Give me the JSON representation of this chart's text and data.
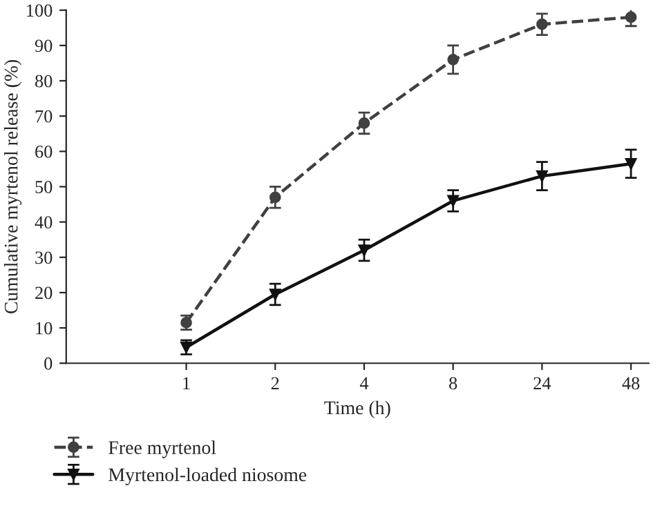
{
  "chart_data": {
    "type": "line",
    "xlabel": "Time (h)",
    "ylabel": "Cumulative myrtenol release (%)",
    "categories": [
      "1",
      "2",
      "4",
      "8",
      "24",
      "48"
    ],
    "series": [
      {
        "name": "Free myrtenol",
        "color": "#404040",
        "line_style": "dashed",
        "marker": "circle",
        "values": [
          11.5,
          47,
          68,
          86,
          96,
          98
        ],
        "errors": [
          2,
          3,
          3,
          4,
          3,
          2.5
        ]
      },
      {
        "name": "Myrtenol-loaded niosome",
        "color": "#111111",
        "line_style": "solid",
        "marker": "triangle",
        "values": [
          4.5,
          19.5,
          32,
          46,
          53,
          56.5
        ],
        "errors": [
          2,
          3,
          3,
          3,
          4,
          4
        ]
      }
    ],
    "ylim": [
      0,
      100
    ],
    "yticks": [
      0,
      10,
      20,
      30,
      40,
      50,
      60,
      70,
      80,
      90,
      100
    ],
    "grid": false,
    "legend": "bottom left"
  }
}
